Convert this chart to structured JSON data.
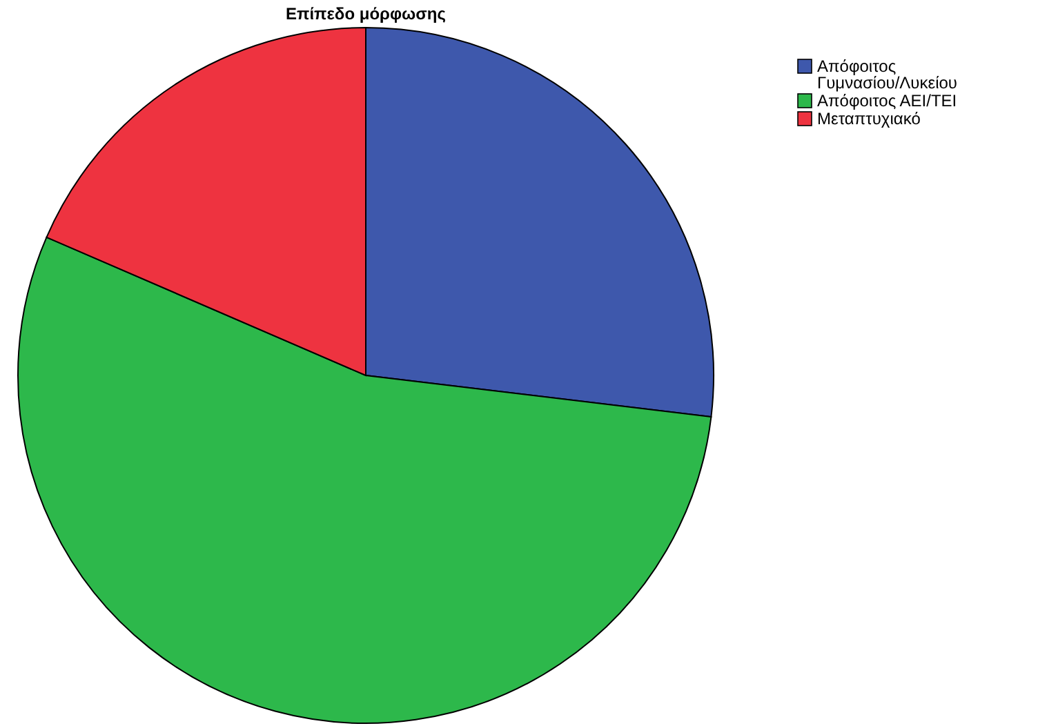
{
  "chart_data": {
    "type": "pie",
    "title": "Επίπεδο μόρφωσης",
    "categories": [
      "Απόφοιτος Γυμνασίου/Λυκείου",
      "Απόφοιτος ΑΕΙ/ΤΕΙ",
      "Μεταπτυχιακό"
    ],
    "values": [
      26.9,
      54.6,
      18.5
    ],
    "colors": [
      "#3e58ac",
      "#2db84b",
      "#ee3340"
    ],
    "legend": "top right"
  }
}
